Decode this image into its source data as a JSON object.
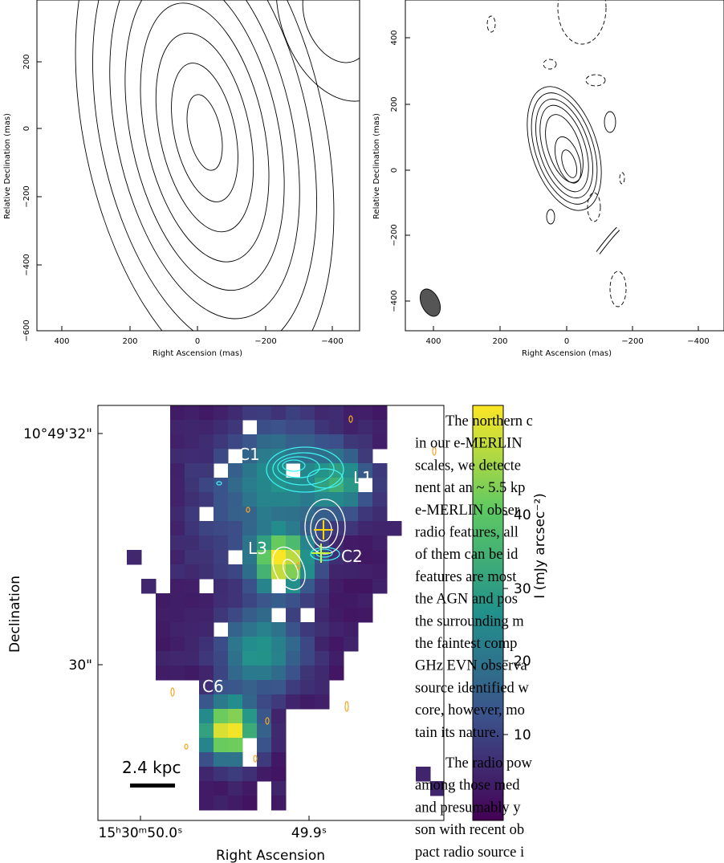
{
  "panels": [
    {
      "x_label": "Right Ascension  (mas)",
      "y_label": "Relative Declination  (mas)",
      "x_ticks": [
        "400",
        "200",
        "0",
        "−200",
        "−400"
      ],
      "y_ticks": [
        "200",
        "0",
        "−200",
        "−400",
        "−600"
      ]
    },
    {
      "x_label": "Right Ascension  (mas)",
      "y_label": "Relative Declination  (mas)",
      "x_ticks": [
        "400",
        "200",
        "0",
        "−200",
        "−400"
      ],
      "y_ticks": [
        "400",
        "200",
        "0",
        "−200",
        "−400"
      ]
    }
  ],
  "image_panel": {
    "x_label": "Right Ascension",
    "y_label": "Declination",
    "x_ticks": [
      "15ʰ30ᵐ50.0ˢ",
      "49.9ˢ"
    ],
    "y_ticks": [
      "10°49'32\"",
      "30\""
    ],
    "labels": [
      "C1",
      "L1",
      "L3",
      "C2",
      "C6"
    ],
    "scale_bar": "2.4 kpc",
    "colorbar": {
      "label": "I (mJy arcsec⁻²)",
      "ticks": [
        "40",
        "30",
        "20",
        "10"
      ]
    }
  },
  "text": {
    "paragraphs": [
      [
        "The northern c",
        "in our e-MERLIN",
        "scales, we detecte",
        "nent at an ~ 5.5 kp",
        "e-MERLIN obser",
        "radio features, all",
        "of them can be id",
        "features are most",
        "the AGN and pos",
        "the surrounding m",
        "the faintest comp",
        "GHz EVN observa",
        "source identified w",
        "core, however, mo",
        "tain its nature."
      ],
      [
        "The radio pow",
        "among those med",
        "and presumably y",
        "son with recent ob",
        "pact radio source i"
      ]
    ]
  }
}
